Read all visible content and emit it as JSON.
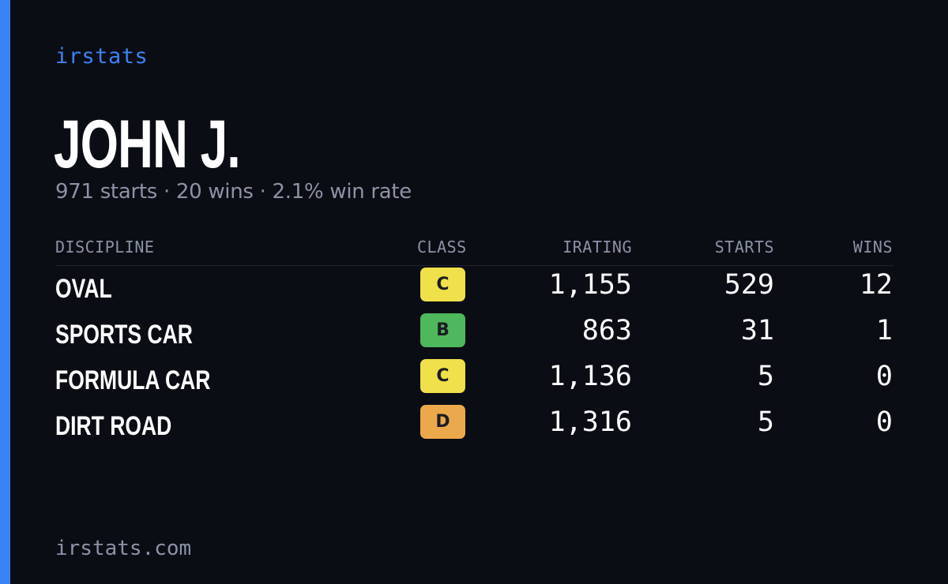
{
  "brand": "irstats",
  "driver": {
    "name": "JOHN J.",
    "summary": "971 starts · 20 wins · 2.1% win rate"
  },
  "table": {
    "headers": {
      "discipline": "DISCIPLINE",
      "class": "CLASS",
      "irating": "IRATING",
      "starts": "STARTS",
      "wins": "WINS"
    },
    "rows": [
      {
        "discipline": "OVAL",
        "class": "C",
        "class_color": "#f0e04a",
        "irating": "1,155",
        "starts": "529",
        "wins": "12"
      },
      {
        "discipline": "SPORTS CAR",
        "class": "B",
        "class_color": "#4fb85c",
        "irating": "863",
        "starts": "31",
        "wins": "1"
      },
      {
        "discipline": "FORMULA CAR",
        "class": "C",
        "class_color": "#f0e04a",
        "irating": "1,136",
        "starts": "5",
        "wins": "0"
      },
      {
        "discipline": "DIRT ROAD",
        "class": "D",
        "class_color": "#eca94b",
        "irating": "1,316",
        "starts": "5",
        "wins": "0"
      }
    ]
  },
  "footer": "irstats.com",
  "colors": {
    "background": "#0b0d14",
    "accent": "#3b82f6",
    "muted_text": "#8b93a7"
  }
}
